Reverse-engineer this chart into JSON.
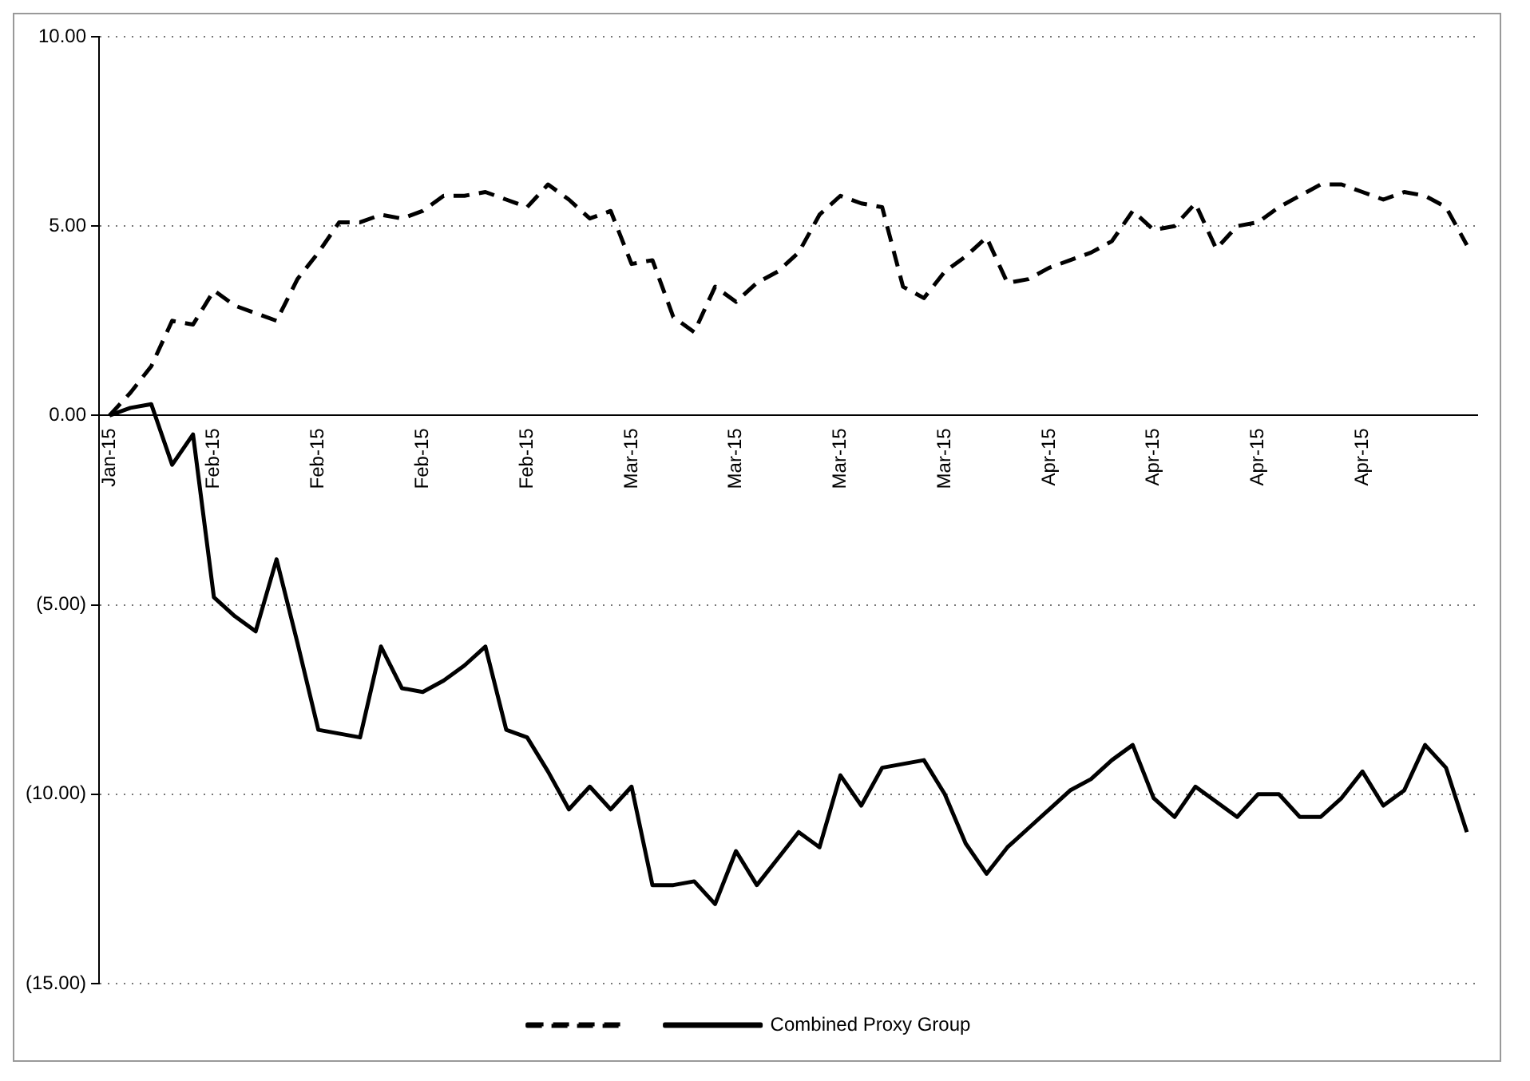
{
  "chart_data": {
    "type": "line",
    "categories": [
      "Jan-15",
      null,
      null,
      null,
      null,
      "Feb-15",
      null,
      null,
      null,
      null,
      "Feb-15",
      null,
      null,
      null,
      null,
      "Feb-15",
      null,
      null,
      null,
      null,
      "Feb-15",
      null,
      null,
      null,
      null,
      "Mar-15",
      null,
      null,
      null,
      null,
      "Mar-15",
      null,
      null,
      null,
      null,
      "Mar-15",
      null,
      null,
      null,
      null,
      "Mar-15",
      null,
      null,
      null,
      null,
      "Apr-15",
      null,
      null,
      null,
      null,
      "Apr-15",
      null,
      null,
      null,
      null,
      "Apr-15",
      null,
      null,
      null,
      null,
      "Apr-15",
      null,
      null,
      null,
      null,
      null
    ],
    "series": [
      {
        "color": "#000000",
        "line_style": "dashed",
        "values": [
          0,
          0.6,
          1.3,
          2.5,
          2.4,
          3.3,
          2.9,
          2.7,
          2.5,
          3.6,
          4.3,
          5.1,
          5.1,
          5.3,
          5.2,
          5.4,
          5.8,
          5.8,
          5.9,
          5.7,
          5.5,
          6.1,
          5.7,
          5.2,
          5.4,
          4.0,
          4.1,
          2.6,
          2.2,
          3.4,
          3.0,
          3.5,
          3.8,
          4.3,
          5.3,
          5.8,
          5.6,
          5.5,
          3.4,
          3.1,
          3.8,
          4.2,
          4.7,
          3.5,
          3.6,
          3.9,
          4.1,
          4.3,
          4.6,
          5.4,
          4.9,
          5.0,
          5.6,
          4.4,
          5.0,
          5.1,
          5.5,
          5.8,
          6.1,
          6.1,
          5.9,
          5.7,
          5.9,
          5.8,
          5.5,
          4.5
        ]
      },
      {
        "name": "Combined Proxy Group",
        "color": "#000000",
        "line_style": "solid",
        "values": [
          0,
          0.2,
          0.3,
          -1.3,
          -0.5,
          -4.8,
          -5.3,
          -5.7,
          -3.8,
          -6.0,
          -8.3,
          -8.4,
          -8.5,
          -6.1,
          -7.2,
          -7.3,
          -7.0,
          -6.6,
          -6.1,
          -8.3,
          -8.5,
          -9.4,
          -10.4,
          -9.8,
          -10.4,
          -9.8,
          -12.4,
          -12.4,
          -12.3,
          -12.9,
          -11.5,
          -12.4,
          -11.7,
          -11.0,
          -11.4,
          -9.5,
          -10.3,
          -9.3,
          -9.2,
          -9.1,
          -10.0,
          -11.3,
          -12.1,
          -11.4,
          -10.9,
          -10.4,
          -9.9,
          -9.6,
          -9.1,
          -8.7,
          -10.1,
          -10.6,
          -9.8,
          -10.2,
          -10.6,
          -10.0,
          -10.0,
          -10.6,
          -10.6,
          -10.1,
          -9.4,
          -10.3,
          -9.9,
          -8.7,
          -9.3,
          -11.0
        ]
      }
    ],
    "ylim": [
      -15,
      10
    ],
    "yticks": [
      {
        "value": 10,
        "label": "10.00"
      },
      {
        "value": 5,
        "label": "5.00"
      },
      {
        "value": 0,
        "label": "0.00"
      },
      {
        "value": -5,
        "label": "(5.00)"
      },
      {
        "value": -10,
        "label": "(10.00)"
      },
      {
        "value": -15,
        "label": "(15.00)"
      }
    ],
    "grid": "y",
    "legend": "bottom",
    "marker": "none"
  }
}
